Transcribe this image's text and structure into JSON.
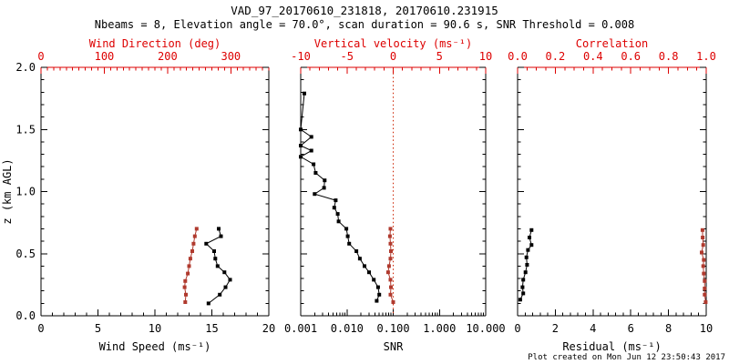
{
  "header": {
    "title": "VAD_97_20170610_231818, 20170610.231915",
    "subtitle": "Nbeams = 8, Elevation angle = 70.0°, scan duration = 90.6 s, SNR Threshold = 0.008"
  },
  "footer": {
    "created": "Plot created on Mon Jun 12 23:50:43 2017"
  },
  "colors": {
    "accent_axis_red": "#dd0000",
    "series_red": "#b03a2e",
    "series_black": "#000000",
    "reference_red": "#cc2200",
    "frame_black": "#000000",
    "background": "#ffffff"
  },
  "chart_data": [
    {
      "type": "line",
      "panel": "wind",
      "y_axis": {
        "label": "z (km AGL)",
        "range": [
          0.0,
          2.0
        ],
        "major_ticks": [
          0.0,
          0.5,
          1.0,
          1.5,
          2.0
        ],
        "tick_labels": [
          "0.0",
          "0.5",
          "1.0",
          "1.5",
          "2.0"
        ],
        "minor_step": 0.1
      },
      "bottom_axis": {
        "label": "Wind Speed (ms⁻¹)",
        "scale": "linear",
        "range": [
          0,
          20
        ],
        "major_ticks": [
          0,
          5,
          10,
          15,
          20
        ],
        "tick_labels": [
          "0",
          "5",
          "10",
          "15",
          "20"
        ],
        "minor_step": 1
      },
      "top_axis": {
        "label": "Wind Direction (deg)",
        "scale": "linear",
        "range": [
          0,
          360
        ],
        "major_ticks": [
          0,
          100,
          200,
          300
        ],
        "tick_labels": [
          "0",
          "100",
          "200",
          "300"
        ],
        "minor_step": 10
      },
      "series": [
        {
          "name": "wind-speed",
          "axis": "bottom",
          "color": "black",
          "z": [
            0.1,
            0.17,
            0.23,
            0.29,
            0.35,
            0.4,
            0.46,
            0.52,
            0.58,
            0.64,
            0.7
          ],
          "values": [
            14.7,
            15.7,
            16.2,
            16.6,
            16.1,
            15.5,
            15.3,
            15.2,
            14.5,
            15.8,
            15.6
          ]
        },
        {
          "name": "wind-direction",
          "axis": "top",
          "color": "red",
          "z": [
            0.11,
            0.17,
            0.23,
            0.28,
            0.34,
            0.4,
            0.46,
            0.52,
            0.58,
            0.64,
            0.7
          ],
          "values": [
            228,
            229,
            227,
            228,
            232,
            234,
            236,
            239,
            241,
            243,
            246
          ]
        }
      ]
    },
    {
      "type": "line",
      "panel": "snr",
      "y_axis": {
        "range": [
          0.0,
          2.0
        ],
        "major_ticks": [
          0.0,
          0.5,
          1.0,
          1.5,
          2.0
        ],
        "minor_step": 0.1
      },
      "bottom_axis": {
        "label": "SNR",
        "scale": "log",
        "range": [
          0.001,
          10
        ],
        "major_ticks": [
          0.001,
          0.01,
          0.1,
          1,
          10
        ],
        "tick_labels": [
          "0.001",
          "0.010",
          "0.100",
          "1.000",
          "10.000"
        ]
      },
      "top_axis": {
        "label": "Vertical velocity (ms⁻¹)",
        "scale": "linear",
        "range": [
          -10,
          10
        ],
        "major_ticks": [
          -10,
          -5,
          0,
          5,
          10
        ],
        "tick_labels": [
          "-10",
          "-5",
          "0",
          "5",
          "10"
        ],
        "minor_step": 1
      },
      "reference_line": {
        "axis": "top",
        "value": 0,
        "style": "dotted"
      },
      "series": [
        {
          "name": "snr",
          "axis": "bottom",
          "color": "black",
          "z": [
            0.12,
            0.17,
            0.23,
            0.29,
            0.35,
            0.4,
            0.46,
            0.52,
            0.58,
            0.64,
            0.7,
            0.76,
            0.82,
            0.87,
            0.93,
            0.98,
            1.03,
            1.09,
            1.15,
            1.22,
            1.28,
            1.33,
            1.37,
            1.44,
            1.5,
            1.79
          ],
          "values": [
            0.044,
            0.05,
            0.047,
            0.038,
            0.03,
            0.024,
            0.019,
            0.016,
            0.0112,
            0.0104,
            0.0097,
            0.0066,
            0.0063,
            0.0053,
            0.0057,
            0.002,
            0.0032,
            0.0033,
            0.0021,
            0.0019,
            0.001,
            0.0017,
            0.001,
            0.0017,
            0.001,
            0.0012
          ]
        },
        {
          "name": "vertical-velocity",
          "axis": "top",
          "color": "red",
          "z": [
            0.11,
            0.17,
            0.23,
            0.29,
            0.35,
            0.4,
            0.46,
            0.52,
            0.58,
            0.64,
            0.7
          ],
          "values": [
            0.0,
            -0.3,
            -0.25,
            -0.3,
            -0.55,
            -0.45,
            -0.3,
            -0.25,
            -0.3,
            -0.35,
            -0.3
          ]
        }
      ]
    },
    {
      "type": "line",
      "panel": "residual",
      "y_axis": {
        "range": [
          0.0,
          2.0
        ],
        "major_ticks": [
          0.0,
          0.5,
          1.0,
          1.5,
          2.0
        ],
        "minor_step": 0.1
      },
      "bottom_axis": {
        "label": "Residual (ms⁻¹)",
        "scale": "linear",
        "range": [
          0,
          10
        ],
        "major_ticks": [
          0,
          2,
          4,
          6,
          8,
          10
        ],
        "tick_labels": [
          "0",
          "2",
          "4",
          "6",
          "8",
          "10"
        ],
        "minor_step": 0.4
      },
      "top_axis": {
        "label": "Correlation",
        "scale": "linear",
        "range": [
          0.0,
          1.0
        ],
        "major_ticks": [
          0.0,
          0.2,
          0.4,
          0.6,
          0.8,
          1.0
        ],
        "tick_labels": [
          "0.0",
          "0.2",
          "0.4",
          "0.6",
          "0.8",
          "1.0"
        ],
        "minor_step": 0.05
      },
      "series": [
        {
          "name": "residual",
          "axis": "bottom",
          "color": "black",
          "z": [
            0.13,
            0.18,
            0.23,
            0.29,
            0.35,
            0.41,
            0.47,
            0.53,
            0.57,
            0.63,
            0.69
          ],
          "values": [
            0.14,
            0.3,
            0.26,
            0.3,
            0.42,
            0.5,
            0.47,
            0.55,
            0.74,
            0.63,
            0.74
          ]
        },
        {
          "name": "correlation",
          "axis": "top",
          "color": "red",
          "z": [
            0.11,
            0.17,
            0.22,
            0.28,
            0.34,
            0.4,
            0.45,
            0.51,
            0.57,
            0.63,
            0.69
          ],
          "values": [
            0.997,
            0.992,
            0.992,
            0.992,
            0.987,
            0.984,
            0.987,
            0.976,
            0.984,
            0.981,
            0.98
          ]
        }
      ]
    }
  ]
}
